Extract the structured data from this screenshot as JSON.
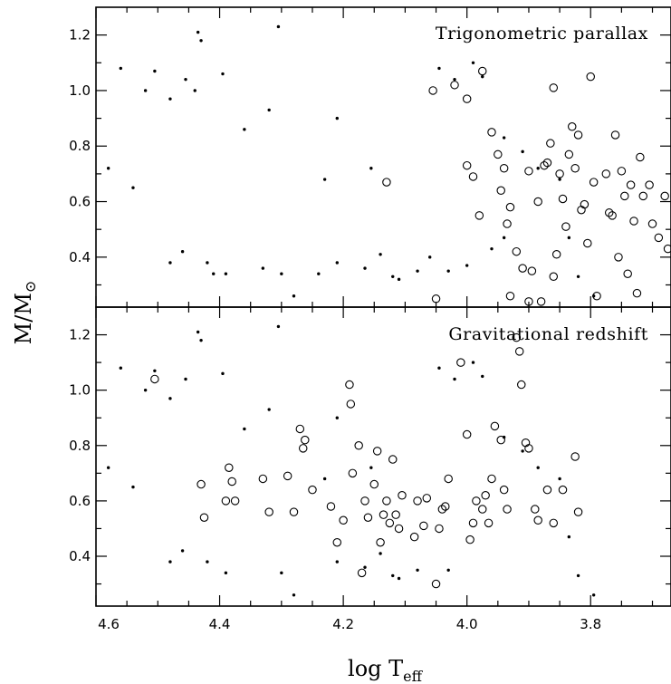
{
  "chart_data": [
    {
      "type": "scatter",
      "title": "Trigonometric parallax",
      "xlabel": "",
      "ylabel": "",
      "xlim": [
        4.6,
        3.67
      ],
      "ylim": [
        0.22,
        1.3
      ],
      "x_ticks": [
        "4.6",
        "4.4",
        "4.2",
        "4.0",
        "3.8"
      ],
      "y_ticks": [
        "0.4",
        "0.6",
        "0.8",
        "1.0",
        "1.2"
      ],
      "series": [
        {
          "marker": "dot",
          "points": [
            [
              4.58,
              0.72
            ],
            [
              4.56,
              1.08
            ],
            [
              4.54,
              0.65
            ],
            [
              4.52,
              1.0
            ],
            [
              4.505,
              1.07
            ],
            [
              4.48,
              0.97
            ],
            [
              4.455,
              1.04
            ],
            [
              4.44,
              1.0
            ],
            [
              4.435,
              1.21
            ],
            [
              4.43,
              1.18
            ],
            [
              4.395,
              1.06
            ],
            [
              4.36,
              0.86
            ],
            [
              4.32,
              0.93
            ],
            [
              4.305,
              1.23
            ],
            [
              4.23,
              0.68
            ],
            [
              4.21,
              0.9
            ],
            [
              4.155,
              0.72
            ],
            [
              4.12,
              0.33
            ],
            [
              4.045,
              1.08
            ],
            [
              4.02,
              1.04
            ],
            [
              3.99,
              1.1
            ],
            [
              3.975,
              1.05
            ],
            [
              3.94,
              0.83
            ],
            [
              3.91,
              0.78
            ],
            [
              3.885,
              0.72
            ],
            [
              3.85,
              0.68
            ],
            [
              3.835,
              0.47
            ],
            [
              3.82,
              0.33
            ],
            [
              3.795,
              0.26
            ],
            [
              4.48,
              0.38
            ],
            [
              4.46,
              0.42
            ],
            [
              4.42,
              0.38
            ],
            [
              4.41,
              0.34
            ],
            [
              4.39,
              0.34
            ],
            [
              4.33,
              0.36
            ],
            [
              4.3,
              0.34
            ],
            [
              4.28,
              0.26
            ],
            [
              4.24,
              0.34
            ],
            [
              4.21,
              0.38
            ],
            [
              4.165,
              0.36
            ],
            [
              4.14,
              0.41
            ],
            [
              4.11,
              0.32
            ],
            [
              4.08,
              0.35
            ],
            [
              4.06,
              0.4
            ],
            [
              4.03,
              0.35
            ],
            [
              4.0,
              0.37
            ],
            [
              3.96,
              0.43
            ],
            [
              3.94,
              0.47
            ]
          ]
        },
        {
          "marker": "open circle",
          "points": [
            [
              4.13,
              0.67
            ],
            [
              4.055,
              1.0
            ],
            [
              4.05,
              0.25
            ],
            [
              4.02,
              1.02
            ],
            [
              4.0,
              0.97
            ],
            [
              4.0,
              0.73
            ],
            [
              3.99,
              0.69
            ],
            [
              3.98,
              0.55
            ],
            [
              3.975,
              1.07
            ],
            [
              3.96,
              0.85
            ],
            [
              3.95,
              0.77
            ],
            [
              3.945,
              0.64
            ],
            [
              3.94,
              0.72
            ],
            [
              3.935,
              0.52
            ],
            [
              3.93,
              0.58
            ],
            [
              3.93,
              0.26
            ],
            [
              3.92,
              0.42
            ],
            [
              3.91,
              0.36
            ],
            [
              3.9,
              0.71
            ],
            [
              3.895,
              0.35
            ],
            [
              3.885,
              0.6
            ],
            [
              3.88,
              0.24
            ],
            [
              3.875,
              0.73
            ],
            [
              3.87,
              0.74
            ],
            [
              3.865,
              0.81
            ],
            [
              3.86,
              1.01
            ],
            [
              3.855,
              0.41
            ],
            [
              3.85,
              0.7
            ],
            [
              3.845,
              0.61
            ],
            [
              3.84,
              0.51
            ],
            [
              3.835,
              0.77
            ],
            [
              3.83,
              0.87
            ],
            [
              3.825,
              0.72
            ],
            [
              3.82,
              0.84
            ],
            [
              3.815,
              0.57
            ],
            [
              3.81,
              0.59
            ],
            [
              3.805,
              0.45
            ],
            [
              3.8,
              1.05
            ],
            [
              3.795,
              0.67
            ],
            [
              3.79,
              0.26
            ],
            [
              3.775,
              0.7
            ],
            [
              3.77,
              0.56
            ],
            [
              3.765,
              0.55
            ],
            [
              3.76,
              0.84
            ],
            [
              3.755,
              0.4
            ],
            [
              3.75,
              0.71
            ],
            [
              3.745,
              0.62
            ],
            [
              3.74,
              0.34
            ],
            [
              3.735,
              0.66
            ],
            [
              3.73,
              0.53
            ],
            [
              3.725,
              0.27
            ],
            [
              3.72,
              0.76
            ],
            [
              3.715,
              0.62
            ],
            [
              3.705,
              0.66
            ],
            [
              3.7,
              0.52
            ],
            [
              3.69,
              0.47
            ],
            [
              3.68,
              0.62
            ],
            [
              3.675,
              0.43
            ],
            [
              3.86,
              0.33
            ],
            [
              3.9,
              0.24
            ]
          ]
        }
      ]
    },
    {
      "type": "scatter",
      "title": "Gravitational redshift",
      "xlabel": "log T_eff",
      "ylabel": "",
      "xlim": [
        4.6,
        3.67
      ],
      "ylim": [
        0.22,
        1.3
      ],
      "x_ticks": [
        "4.6",
        "4.4",
        "4.2",
        "4.0",
        "3.8"
      ],
      "y_ticks": [
        "0.4",
        "0.6",
        "0.8",
        "1.0",
        "1.2"
      ],
      "series": [
        {
          "marker": "dot",
          "points": [
            [
              4.58,
              0.72
            ],
            [
              4.56,
              1.08
            ],
            [
              4.54,
              0.65
            ],
            [
              4.52,
              1.0
            ],
            [
              4.505,
              1.07
            ],
            [
              4.48,
              0.97
            ],
            [
              4.455,
              1.04
            ],
            [
              4.435,
              1.21
            ],
            [
              4.43,
              1.18
            ],
            [
              4.395,
              1.06
            ],
            [
              4.36,
              0.86
            ],
            [
              4.32,
              0.93
            ],
            [
              4.305,
              1.23
            ],
            [
              4.23,
              0.68
            ],
            [
              4.21,
              0.9
            ],
            [
              4.155,
              0.72
            ],
            [
              4.12,
              0.33
            ],
            [
              4.045,
              1.08
            ],
            [
              4.02,
              1.04
            ],
            [
              3.99,
              1.1
            ],
            [
              3.975,
              1.05
            ],
            [
              3.94,
              0.83
            ],
            [
              3.91,
              0.78
            ],
            [
              3.885,
              0.72
            ],
            [
              3.85,
              0.68
            ],
            [
              3.835,
              0.47
            ],
            [
              3.82,
              0.33
            ],
            [
              3.795,
              0.26
            ],
            [
              4.48,
              0.38
            ],
            [
              4.46,
              0.42
            ],
            [
              4.42,
              0.38
            ],
            [
              4.39,
              0.34
            ],
            [
              4.3,
              0.34
            ],
            [
              4.28,
              0.26
            ],
            [
              4.21,
              0.38
            ],
            [
              4.165,
              0.36
            ],
            [
              4.14,
              0.41
            ],
            [
              4.11,
              0.32
            ],
            [
              4.08,
              0.35
            ],
            [
              4.03,
              0.35
            ]
          ]
        },
        {
          "marker": "open circle",
          "points": [
            [
              4.505,
              1.04
            ],
            [
              4.43,
              0.66
            ],
            [
              4.425,
              0.54
            ],
            [
              4.39,
              0.6
            ],
            [
              4.385,
              0.72
            ],
            [
              4.38,
              0.67
            ],
            [
              4.375,
              0.6
            ],
            [
              4.33,
              0.68
            ],
            [
              4.32,
              0.56
            ],
            [
              4.29,
              0.69
            ],
            [
              4.28,
              0.56
            ],
            [
              4.27,
              0.86
            ],
            [
              4.265,
              0.79
            ],
            [
              4.262,
              0.82
            ],
            [
              4.25,
              0.64
            ],
            [
              4.22,
              0.58
            ],
            [
              4.21,
              0.45
            ],
            [
              4.2,
              0.53
            ],
            [
              4.19,
              1.02
            ],
            [
              4.188,
              0.95
            ],
            [
              4.185,
              0.7
            ],
            [
              4.175,
              0.8
            ],
            [
              4.17,
              0.34
            ],
            [
              4.165,
              0.6
            ],
            [
              4.16,
              0.54
            ],
            [
              4.15,
              0.66
            ],
            [
              4.145,
              0.78
            ],
            [
              4.14,
              0.45
            ],
            [
              4.135,
              0.55
            ],
            [
              4.13,
              0.6
            ],
            [
              4.125,
              0.52
            ],
            [
              4.12,
              0.75
            ],
            [
              4.115,
              0.55
            ],
            [
              4.11,
              0.5
            ],
            [
              4.105,
              0.62
            ],
            [
              4.085,
              0.47
            ],
            [
              4.08,
              0.6
            ],
            [
              4.07,
              0.51
            ],
            [
              4.065,
              0.61
            ],
            [
              4.05,
              0.3
            ],
            [
              4.04,
              0.57
            ],
            [
              4.035,
              0.58
            ],
            [
              4.03,
              0.68
            ],
            [
              4.01,
              1.1
            ],
            [
              4.0,
              0.84
            ],
            [
              3.995,
              0.46
            ],
            [
              3.99,
              0.52
            ],
            [
              3.985,
              0.6
            ],
            [
              3.975,
              0.57
            ],
            [
              3.965,
              0.52
            ],
            [
              3.955,
              0.87
            ],
            [
              3.945,
              0.82
            ],
            [
              3.94,
              0.64
            ],
            [
              3.935,
              0.57
            ],
            [
              3.92,
              1.19
            ],
            [
              3.915,
              1.14
            ],
            [
              3.912,
              1.02
            ],
            [
              3.905,
              0.81
            ],
            [
              3.9,
              0.79
            ],
            [
              3.89,
              0.57
            ],
            [
              3.885,
              0.53
            ],
            [
              3.87,
              0.64
            ],
            [
              3.86,
              0.52
            ],
            [
              3.845,
              0.64
            ],
            [
              3.825,
              0.76
            ],
            [
              3.82,
              0.56
            ],
            [
              3.96,
              0.68
            ],
            [
              3.97,
              0.62
            ],
            [
              4.045,
              0.5
            ]
          ]
        }
      ]
    }
  ],
  "figure": {
    "ylabel_main": "M/M",
    "ylabel_sub": "⊙",
    "xlabel_main": "log T",
    "xlabel_sub": "eff",
    "dot_color": "#000000",
    "background": "#ffffff"
  }
}
